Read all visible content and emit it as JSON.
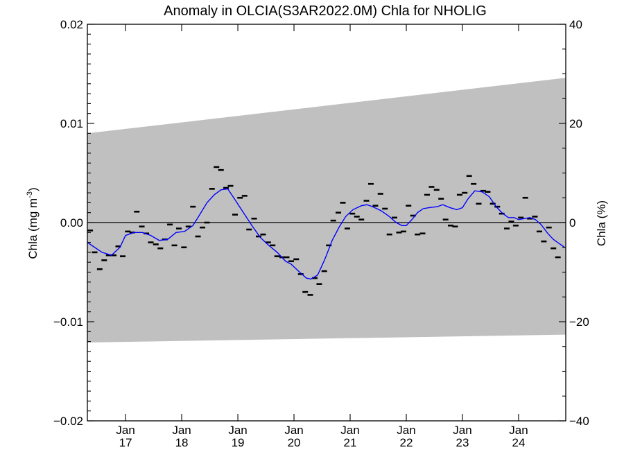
{
  "chart_data": {
    "type": "line",
    "title": "Anomaly in OLCIA(S3AR2022.0M) Chla for NHOLIG",
    "ylabel_left": "Chla (mg m",
    "ylabel_left_sup": "-3",
    "ylabel_left_close": ")",
    "ylabel_right": "Chla (%)",
    "xlim": [
      2016.32,
      2024.84
    ],
    "ylim_left": [
      -0.02,
      0.02
    ],
    "ylim_right": [
      -40,
      40
    ],
    "grid": false,
    "left_ticks": [
      {
        "value": 0.02,
        "label": "0.02"
      },
      {
        "value": 0.01,
        "label": "0.01"
      },
      {
        "value": 0.0,
        "label": "0.00"
      },
      {
        "value": -0.01,
        "label": "−0.01"
      },
      {
        "value": -0.02,
        "label": "−0.02"
      }
    ],
    "right_ticks": [
      {
        "value": 40,
        "label": "40"
      },
      {
        "value": 20,
        "label": "20"
      },
      {
        "value": 0,
        "label": "0"
      },
      {
        "value": -20,
        "label": "−20"
      },
      {
        "value": -40,
        "label": "−40"
      }
    ],
    "x_ticks": [
      {
        "value": 2017,
        "month": "Jan",
        "year": "17"
      },
      {
        "value": 2018,
        "month": "Jan",
        "year": "18"
      },
      {
        "value": 2019,
        "month": "Jan",
        "year": "19"
      },
      {
        "value": 2020,
        "month": "Jan",
        "year": "20"
      },
      {
        "value": 2021,
        "month": "Jan",
        "year": "21"
      },
      {
        "value": 2022,
        "month": "Jan",
        "year": "22"
      },
      {
        "value": 2023,
        "month": "Jan",
        "year": "23"
      },
      {
        "value": 2024,
        "month": "Jan",
        "year": "24"
      }
    ],
    "zero_line": 0,
    "band": {
      "color": "#c0c0c0",
      "upper": [
        [
          2016.32,
          0.009
        ],
        [
          2024.84,
          0.0146
        ]
      ],
      "lower": [
        [
          2016.32,
          -0.0121
        ],
        [
          2024.84,
          -0.0113
        ]
      ]
    },
    "series": [
      {
        "kind": "monthly",
        "color": "#000000",
        "points": [
          [
            2016.37,
            -0.0008
          ],
          [
            2016.45,
            -0.003
          ],
          [
            2016.54,
            -0.0047
          ],
          [
            2016.62,
            -0.0038
          ],
          [
            2016.7,
            -0.0033
          ],
          [
            2016.79,
            -0.0033
          ],
          [
            2016.87,
            -0.0024
          ],
          [
            2016.95,
            -0.0034
          ],
          [
            2017.04,
            -0.0009
          ],
          [
            2017.12,
            -0.001
          ],
          [
            2017.2,
            0.0011
          ],
          [
            2017.29,
            -0.0004
          ],
          [
            2017.37,
            -0.0011
          ],
          [
            2017.45,
            -0.002
          ],
          [
            2017.54,
            -0.0022
          ],
          [
            2017.62,
            -0.0026
          ],
          [
            2017.7,
            -0.0017
          ],
          [
            2017.79,
            -0.0002
          ],
          [
            2017.87,
            -0.0023
          ],
          [
            2017.95,
            -0.0006
          ],
          [
            2018.04,
            -0.0025
          ],
          [
            2018.12,
            -0.0004
          ],
          [
            2018.2,
            0.0016
          ],
          [
            2018.29,
            -0.0014
          ],
          [
            2018.37,
            -0.0005
          ],
          [
            2018.45,
            0.0
          ],
          [
            2018.54,
            0.0034
          ],
          [
            2018.62,
            0.0056
          ],
          [
            2018.7,
            0.0053
          ],
          [
            2018.79,
            0.0035
          ],
          [
            2018.87,
            0.0037
          ],
          [
            2018.95,
            0.0008
          ],
          [
            2019.04,
            0.0025
          ],
          [
            2019.12,
            0.0027
          ],
          [
            2019.2,
            -0.0007
          ],
          [
            2019.29,
            0.0004
          ],
          [
            2019.37,
            -0.0014
          ],
          [
            2019.45,
            -0.0012
          ],
          [
            2019.54,
            -0.002
          ],
          [
            2019.62,
            -0.0023
          ],
          [
            2019.7,
            -0.0034
          ],
          [
            2019.79,
            -0.0035
          ],
          [
            2019.87,
            -0.0035
          ],
          [
            2019.95,
            -0.0039
          ],
          [
            2020.04,
            -0.0037
          ],
          [
            2020.12,
            -0.0052
          ],
          [
            2020.2,
            -0.007
          ],
          [
            2020.29,
            -0.0073
          ],
          [
            2020.37,
            -0.0056
          ],
          [
            2020.45,
            -0.0062
          ],
          [
            2020.54,
            -0.0049
          ],
          [
            2020.62,
            -0.0023
          ],
          [
            2020.7,
            0.0002
          ],
          [
            2020.79,
            0.001
          ],
          [
            2020.87,
            0.002
          ],
          [
            2020.95,
            -0.0006
          ],
          [
            2021.04,
            0.0009
          ],
          [
            2021.12,
            0.0006
          ],
          [
            2021.2,
            0.0003
          ],
          [
            2021.29,
            0.0022
          ],
          [
            2021.37,
            0.0039
          ],
          [
            2021.45,
            0.0017
          ],
          [
            2021.54,
            0.0029
          ],
          [
            2021.62,
            0.0014
          ],
          [
            2021.7,
            -0.0012
          ],
          [
            2021.79,
            0.0005
          ],
          [
            2021.87,
            -0.001
          ],
          [
            2021.95,
            -0.0009
          ],
          [
            2022.04,
            0.0017
          ],
          [
            2022.12,
            0.0007
          ],
          [
            2022.2,
            -0.0012
          ],
          [
            2022.29,
            -0.0011
          ],
          [
            2022.37,
            0.0028
          ],
          [
            2022.45,
            0.0036
          ],
          [
            2022.54,
            0.0033
          ],
          [
            2022.62,
            0.0024
          ],
          [
            2022.7,
            0.0003
          ],
          [
            2022.79,
            -0.0003
          ],
          [
            2022.87,
            -0.0004
          ],
          [
            2022.95,
            0.0028
          ],
          [
            2023.04,
            0.003
          ],
          [
            2023.12,
            0.0047
          ],
          [
            2023.2,
            0.0039
          ],
          [
            2023.29,
            0.0019
          ],
          [
            2023.37,
            0.0032
          ],
          [
            2023.45,
            0.0031
          ],
          [
            2023.54,
            0.0019
          ],
          [
            2023.62,
            0.0016
          ],
          [
            2023.7,
            0.0009
          ],
          [
            2023.79,
            -0.0006
          ],
          [
            2023.87,
            0.0001
          ],
          [
            2023.95,
            -0.0003
          ],
          [
            2024.04,
            0.0005
          ],
          [
            2024.12,
            0.0025
          ],
          [
            2024.2,
            0.0004
          ],
          [
            2024.29,
            0.0006
          ],
          [
            2024.37,
            -0.0009
          ],
          [
            2024.45,
            -0.0019
          ],
          [
            2024.54,
            -0.0005
          ],
          [
            2024.62,
            -0.0026
          ],
          [
            2024.7,
            -0.0035
          ]
        ]
      },
      {
        "kind": "running-mean",
        "color": "#0000ff",
        "points": [
          [
            2016.32,
            -0.002
          ],
          [
            2016.45,
            -0.0025
          ],
          [
            2016.58,
            -0.003
          ],
          [
            2016.75,
            -0.0033
          ],
          [
            2016.9,
            -0.0025
          ],
          [
            2017.0,
            -0.0013
          ],
          [
            2017.15,
            -0.001
          ],
          [
            2017.3,
            -0.001
          ],
          [
            2017.45,
            -0.0013
          ],
          [
            2017.6,
            -0.0018
          ],
          [
            2017.75,
            -0.0017
          ],
          [
            2017.9,
            -0.001
          ],
          [
            2018.05,
            -0.0009
          ],
          [
            2018.2,
            -0.0003
          ],
          [
            2018.3,
            0.0006
          ],
          [
            2018.45,
            0.002
          ],
          [
            2018.58,
            0.0028
          ],
          [
            2018.7,
            0.0033
          ],
          [
            2018.82,
            0.0034
          ],
          [
            2018.95,
            0.0023
          ],
          [
            2019.1,
            0.001
          ],
          [
            2019.25,
            -0.0003
          ],
          [
            2019.4,
            -0.0015
          ],
          [
            2019.55,
            -0.0023
          ],
          [
            2019.7,
            -0.003
          ],
          [
            2019.85,
            -0.0039
          ],
          [
            2019.95,
            -0.0042
          ],
          [
            2020.1,
            -0.005
          ],
          [
            2020.22,
            -0.0056
          ],
          [
            2020.3,
            -0.0057
          ],
          [
            2020.42,
            -0.0053
          ],
          [
            2020.55,
            -0.0037
          ],
          [
            2020.68,
            -0.0018
          ],
          [
            2020.8,
            -0.0005
          ],
          [
            2020.92,
            0.0006
          ],
          [
            2021.05,
            0.0013
          ],
          [
            2021.2,
            0.0017
          ],
          [
            2021.3,
            0.0018
          ],
          [
            2021.4,
            0.0016
          ],
          [
            2021.55,
            0.0012
          ],
          [
            2021.7,
            0.0006
          ],
          [
            2021.82,
            0.0
          ],
          [
            2021.92,
            -0.0003
          ],
          [
            2022.0,
            -0.0003
          ],
          [
            2022.1,
            0.0003
          ],
          [
            2022.2,
            0.001
          ],
          [
            2022.3,
            0.0014
          ],
          [
            2022.4,
            0.0015
          ],
          [
            2022.55,
            0.0016
          ],
          [
            2022.65,
            0.0018
          ],
          [
            2022.78,
            0.0015
          ],
          [
            2022.9,
            0.0013
          ],
          [
            2023.0,
            0.0015
          ],
          [
            2023.1,
            0.0024
          ],
          [
            2023.22,
            0.0032
          ],
          [
            2023.35,
            0.0031
          ],
          [
            2023.48,
            0.0026
          ],
          [
            2023.6,
            0.0016
          ],
          [
            2023.72,
            0.0009
          ],
          [
            2023.82,
            0.0005
          ],
          [
            2023.92,
            0.0005
          ],
          [
            2024.0,
            0.0003
          ],
          [
            2024.1,
            0.0004
          ],
          [
            2024.2,
            0.0005
          ],
          [
            2024.3,
            0.0003
          ],
          [
            2024.4,
            -0.0002
          ],
          [
            2024.52,
            -0.0011
          ],
          [
            2024.62,
            -0.0017
          ],
          [
            2024.72,
            -0.0021
          ],
          [
            2024.82,
            -0.0025
          ]
        ]
      }
    ]
  }
}
